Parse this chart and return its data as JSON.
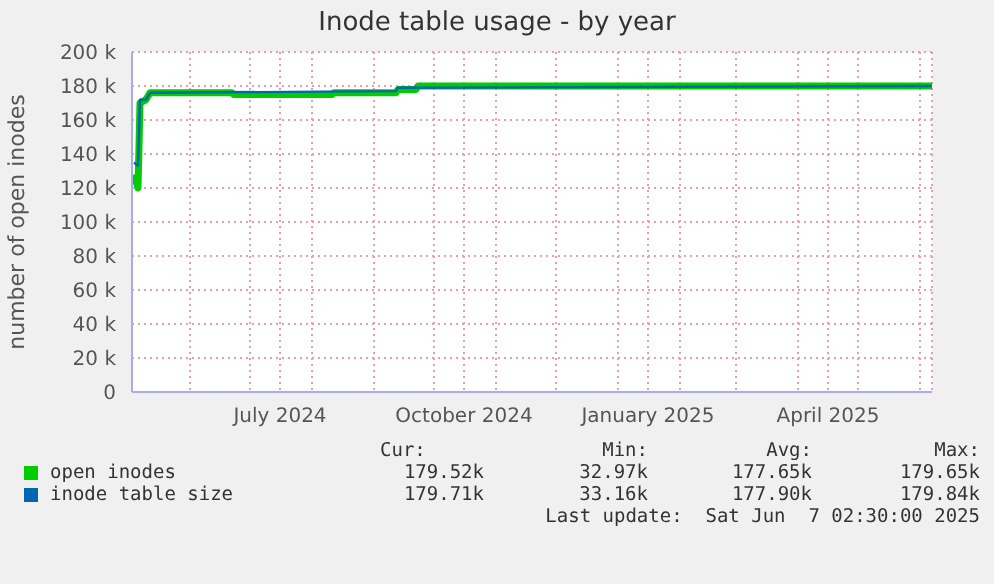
{
  "chart_data": {
    "type": "line",
    "title": "Inode table usage - by year",
    "ylabel": "number of open inodes",
    "xlim": [
      "2024-05-03",
      "2025-06-07"
    ],
    "xticks": [
      {
        "value": "2024-06-01",
        "label": null
      },
      {
        "value": "2024-07-01",
        "label": null
      },
      {
        "value": "2024-07-16",
        "label": "July 2024"
      },
      {
        "value": "2024-08-01",
        "label": null
      },
      {
        "value": "2024-09-01",
        "label": null
      },
      {
        "value": "2024-10-01",
        "label": null
      },
      {
        "value": "2024-10-16",
        "label": "October 2024"
      },
      {
        "value": "2024-11-01",
        "label": null
      },
      {
        "value": "2024-12-01",
        "label": null
      },
      {
        "value": "2025-01-01",
        "label": null
      },
      {
        "value": "2025-01-16",
        "label": "January 2025"
      },
      {
        "value": "2025-02-01",
        "label": null
      },
      {
        "value": "2025-03-01",
        "label": null
      },
      {
        "value": "2025-04-01",
        "label": null
      },
      {
        "value": "2025-04-16",
        "label": "April 2025"
      },
      {
        "value": "2025-05-01",
        "label": null
      },
      {
        "value": "2025-06-01",
        "label": null
      }
    ],
    "ylim": [
      0,
      200000
    ],
    "yticks": [
      {
        "value": 0,
        "label": "0"
      },
      {
        "value": 20000,
        "label": "20 k"
      },
      {
        "value": 40000,
        "label": "40 k"
      },
      {
        "value": 60000,
        "label": "60 k"
      },
      {
        "value": 80000,
        "label": "80 k"
      },
      {
        "value": 100000,
        "label": "100 k"
      },
      {
        "value": 120000,
        "label": "120 k"
      },
      {
        "value": 140000,
        "label": "140 k"
      },
      {
        "value": 160000,
        "label": "160 k"
      },
      {
        "value": 180000,
        "label": "180 k"
      },
      {
        "value": 200000,
        "label": "200 k"
      }
    ],
    "grid": true,
    "legend": "bottom",
    "marker": "none",
    "series": [
      {
        "name": "open inodes",
        "color": "#00cc00",
        "x": [
          "2024-05-04",
          "2024-05-06",
          "2024-05-07",
          "2024-05-10",
          "2024-05-12",
          "2024-06-22",
          "2024-06-23",
          "2024-08-11",
          "2024-08-12",
          "2024-09-12",
          "2024-09-13",
          "2024-09-22",
          "2024-09-23",
          "2025-06-07"
        ],
        "values": [
          128000,
          120000,
          170000,
          172000,
          176000,
          176000,
          175000,
          175000,
          176000,
          176000,
          178000,
          178000,
          180000,
          180000
        ]
      },
      {
        "name": "inode table size",
        "color": "#0066b3",
        "x": [
          "2024-05-04",
          "2024-05-06",
          "2024-05-07",
          "2024-05-10",
          "2024-05-12",
          "2024-09-12",
          "2024-09-13",
          "2025-06-07"
        ],
        "values": [
          135000,
          133000,
          172000,
          172000,
          176000,
          177000,
          179000,
          180000
        ]
      }
    ],
    "annotations": [
      "Cur:",
      "Min:",
      "Avg:",
      "Max:",
      "179.52k",
      "32.97k",
      "177.65k",
      "179.65k",
      "179.71k",
      "33.16k",
      "177.90k",
      "179.84k",
      "Last update:  Sat Jun  7 02:30:00 2025"
    ]
  }
}
